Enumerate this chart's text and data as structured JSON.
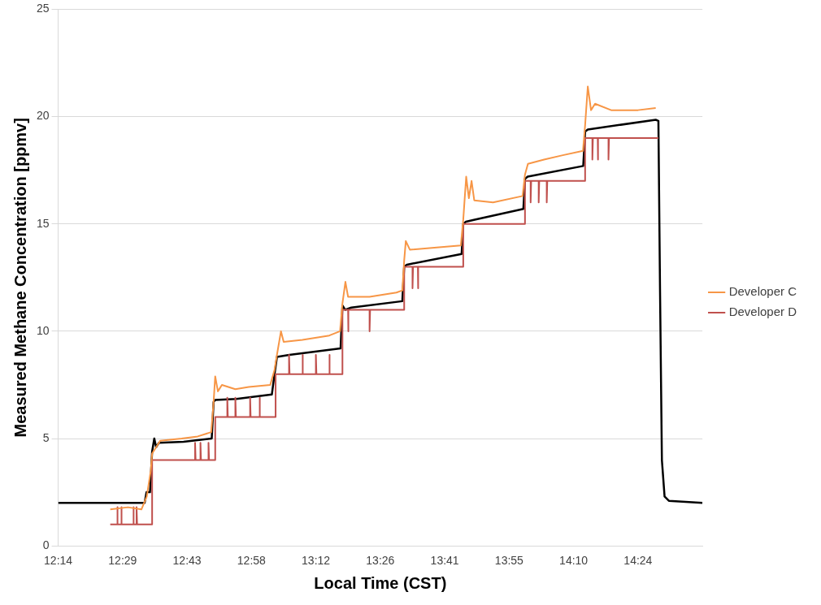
{
  "chart_data": {
    "type": "line",
    "xlabel": "Local Time (CST)",
    "ylabel": "Measured Methane Concentration [ppmv]",
    "xlim": [
      12.24,
      14.64
    ],
    "xticks": [
      {
        "value": 12.24,
        "label": "12:14"
      },
      {
        "value": 12.48,
        "label": "12:29"
      },
      {
        "value": 12.72,
        "label": "12:43"
      },
      {
        "value": 12.96,
        "label": "12:58"
      },
      {
        "value": 13.2,
        "label": "13:12"
      },
      {
        "value": 13.44,
        "label": "13:26"
      },
      {
        "value": 13.68,
        "label": "13:41"
      },
      {
        "value": 13.92,
        "label": "13:55"
      },
      {
        "value": 14.16,
        "label": "14:10"
      },
      {
        "value": 14.4,
        "label": "14:24"
      }
    ],
    "ylim": [
      0,
      25
    ],
    "yticks": [
      0,
      5,
      10,
      15,
      20,
      25
    ],
    "grid": "y",
    "legend": "right",
    "marker": "none",
    "line_style": "solid",
    "series": [
      {
        "name": "Developer C",
        "color": "#f79646",
        "x": [
          12.434,
          12.5,
          12.55,
          12.57,
          12.585,
          12.59,
          12.6,
          12.62,
          12.7,
          12.76,
          12.81,
          12.819,
          12.825,
          12.835,
          12.85,
          12.9,
          12.95,
          13.03,
          13.046,
          13.055,
          13.07,
          13.08,
          13.15,
          13.25,
          13.29,
          13.299,
          13.31,
          13.32,
          13.4,
          13.5,
          13.522,
          13.529,
          13.535,
          13.55,
          13.65,
          13.74,
          13.749,
          13.76,
          13.77,
          13.78,
          13.79,
          13.86,
          13.97,
          13.979,
          13.99,
          14.05,
          14.12,
          14.195,
          14.203,
          14.213,
          14.225,
          14.24,
          14.3,
          14.4,
          14.466
        ],
        "values": [
          1.7,
          1.8,
          1.7,
          2.3,
          3.5,
          4.3,
          4.5,
          4.9,
          5.0,
          5.1,
          5.3,
          6.7,
          7.9,
          7.2,
          7.5,
          7.3,
          7.4,
          7.5,
          8.2,
          8.9,
          10.0,
          9.5,
          9.6,
          9.8,
          10.0,
          11.3,
          12.3,
          11.6,
          11.6,
          11.8,
          11.9,
          13.3,
          14.2,
          13.8,
          13.9,
          14.0,
          15.2,
          17.2,
          16.2,
          17.0,
          16.1,
          16.0,
          16.3,
          17.3,
          17.8,
          18.0,
          18.2,
          18.4,
          19.6,
          21.4,
          20.3,
          20.6,
          20.3,
          20.3,
          20.4
        ]
      },
      {
        "name": "Developer D",
        "color": "#c0504d",
        "x": [
          12.434,
          12.46,
          12.46,
          12.462,
          12.475,
          12.475,
          12.477,
          12.52,
          12.52,
          12.522,
          12.532,
          12.532,
          12.534,
          12.59,
          12.59,
          12.75,
          12.75,
          12.752,
          12.77,
          12.77,
          12.772,
          12.8,
          12.8,
          12.802,
          12.825,
          12.825,
          12.87,
          12.87,
          12.872,
          12.9,
          12.9,
          12.902,
          12.955,
          12.955,
          12.957,
          12.99,
          12.99,
          12.992,
          13.05,
          13.05,
          13.1,
          13.1,
          13.102,
          13.15,
          13.15,
          13.152,
          13.2,
          13.2,
          13.202,
          13.25,
          13.25,
          13.252,
          13.299,
          13.299,
          13.32,
          13.32,
          13.322,
          13.4,
          13.4,
          13.402,
          13.529,
          13.529,
          13.56,
          13.56,
          13.562,
          13.58,
          13.58,
          13.582,
          13.749,
          13.749,
          13.979,
          13.979,
          14.0,
          14.0,
          14.002,
          14.03,
          14.03,
          14.032,
          14.06,
          14.06,
          14.062,
          14.203,
          14.203,
          14.23,
          14.23,
          14.232,
          14.25,
          14.25,
          14.252,
          14.29,
          14.29,
          14.292,
          14.476
        ],
        "values": [
          1,
          1,
          1.8,
          1,
          1,
          1.8,
          1,
          1,
          1.8,
          1,
          1,
          1.8,
          1,
          1,
          4,
          4,
          4.8,
          4,
          4,
          4.8,
          4,
          4,
          4.8,
          4,
          4,
          6,
          6,
          6.9,
          6,
          6,
          6.9,
          6,
          6,
          6.9,
          6,
          6,
          6.9,
          6,
          6,
          8,
          8,
          8.9,
          8,
          8,
          8.9,
          8,
          8,
          8.9,
          8,
          8,
          8.9,
          8,
          8,
          11,
          11,
          10,
          11,
          11,
          10,
          11,
          11,
          13,
          13,
          12,
          13,
          13,
          12,
          13,
          13,
          15,
          15,
          17,
          17,
          16,
          17,
          17,
          16,
          17,
          17,
          16,
          17,
          17,
          19,
          19,
          18,
          19,
          19,
          18,
          19,
          19,
          18,
          19,
          19
        ]
      },
      {
        "color": "#000000",
        "x": [
          12.24,
          12.562,
          12.569,
          12.582,
          12.59,
          12.598,
          12.605,
          12.615,
          12.707,
          12.812,
          12.819,
          12.825,
          12.904,
          13.036,
          13.046,
          13.055,
          13.101,
          13.167,
          13.292,
          13.299,
          13.309,
          13.332,
          13.522,
          13.529,
          13.539,
          13.743,
          13.749,
          13.759,
          13.792,
          13.973,
          13.979,
          13.989,
          14.196,
          14.203,
          14.213,
          14.466,
          14.476,
          14.482,
          14.489,
          14.499,
          14.515,
          14.64
        ],
        "values": [
          2.0,
          2.0,
          2.5,
          2.5,
          4.4,
          5.0,
          4.6,
          4.8,
          4.85,
          5.0,
          6.7,
          6.8,
          6.85,
          7.05,
          8.0,
          8.8,
          8.9,
          9.0,
          9.2,
          11.2,
          11.0,
          11.1,
          11.4,
          13.0,
          13.1,
          13.6,
          15.0,
          15.1,
          15.2,
          15.7,
          17.1,
          17.2,
          17.7,
          19.3,
          19.4,
          19.85,
          19.8,
          12,
          4,
          2.3,
          2.1,
          2.0
        ]
      }
    ]
  }
}
